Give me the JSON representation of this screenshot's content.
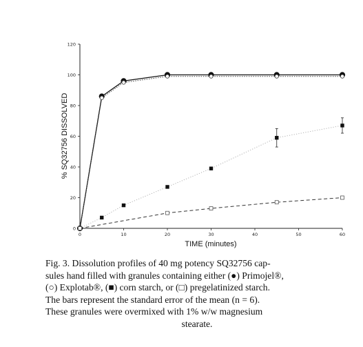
{
  "chart_data": {
    "type": "line",
    "title": "",
    "xlabel": "TIME (minutes)",
    "ylabel": "% SQ32756 DISSOLVED",
    "xlim": [
      0,
      60
    ],
    "ylim": [
      0,
      120
    ],
    "x_ticks": [
      "0",
      "10",
      "20",
      "30",
      "40",
      "50",
      "60"
    ],
    "y_ticks": [
      "0",
      "20",
      "40",
      "60",
      "80",
      "100",
      "120"
    ],
    "x": [
      0,
      5,
      10,
      20,
      30,
      45,
      60
    ],
    "series": [
      {
        "name": "Primojel",
        "marker": "filled-circle",
        "line": "solid",
        "values": [
          0,
          86,
          96,
          100,
          100,
          100,
          100
        ],
        "errors": [
          0,
          0,
          0,
          0,
          0,
          0,
          0
        ]
      },
      {
        "name": "Explotab",
        "marker": "open-circle",
        "line": "dotted",
        "values": [
          0,
          85,
          95,
          99,
          99,
          99,
          99
        ],
        "errors": [
          0,
          0,
          0,
          0,
          0,
          0,
          0
        ]
      },
      {
        "name": "corn starch",
        "marker": "filled-square",
        "line": "dotted-light",
        "values": [
          0,
          7,
          15,
          27,
          39,
          59,
          67
        ],
        "errors": [
          0,
          0,
          0,
          0,
          0,
          6,
          5
        ]
      },
      {
        "name": "pregelatinized starch",
        "marker": "open-square",
        "line": "dashed",
        "values": [
          0,
          null,
          null,
          10,
          13,
          17,
          20
        ],
        "errors": [
          0,
          0,
          0,
          0,
          0,
          1,
          1
        ]
      }
    ],
    "grid": false,
    "legend": "none"
  },
  "caption": {
    "lines": [
      "Fig. 3. Dissolution profiles of 40 mg potency SQ32756 cap-",
      "sules hand filled with granules containing either (●) Primojel®,",
      "(○) Explotab®, (■) corn starch, or (□) pregelatinized starch.",
      "The bars represent the standard error of the mean (n = 6).",
      "These granules were overmixed with 1% w/w magnesium",
      "stearate."
    ]
  }
}
